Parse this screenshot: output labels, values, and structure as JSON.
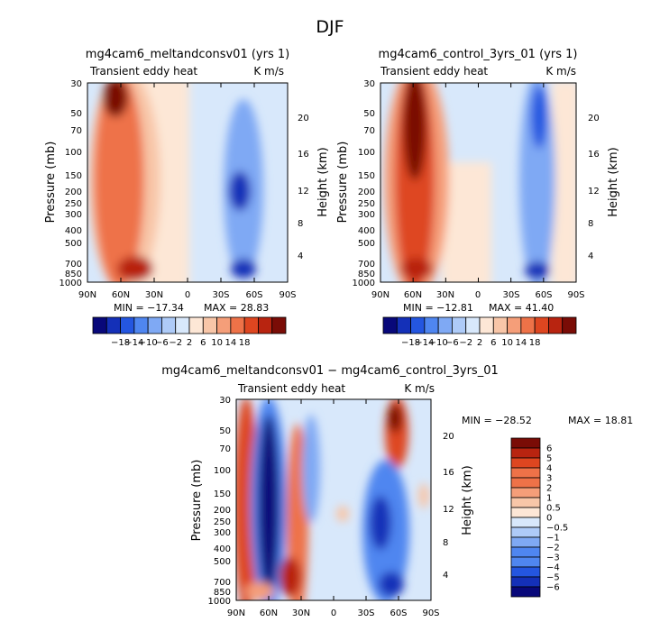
{
  "suptitle": "DJF",
  "chart_data": [
    {
      "type": "heatmap",
      "title": "mg4cam6_meltandconsv01 (yrs 1)",
      "subtitle_left": "Transient eddy heat",
      "subtitle_right": "K m/s",
      "ylabel": "Pressure (mb)",
      "ylabel_right": "Height (km)",
      "x_ticks": [
        "90N",
        "60N",
        "30N",
        "0",
        "30S",
        "60S",
        "90S"
      ],
      "y_ticks": [
        "30",
        "50",
        "70",
        "100",
        "150",
        "200",
        "250",
        "300",
        "400",
        "500",
        "700",
        "850",
        "1000"
      ],
      "right_ticks": [
        "20",
        "16",
        "12",
        "8",
        "4"
      ],
      "min_text": "MIN = −17.34",
      "max_text": "MAX =  28.83",
      "min_value": -17.34,
      "max_value": 28.83,
      "colorbar_labels": [
        "−18",
        "−14",
        "−10",
        "−6",
        "−2",
        "2",
        "6",
        "10",
        "14",
        "18"
      ],
      "colorbar_range": [
        -20,
        20
      ]
    },
    {
      "type": "heatmap",
      "title": "mg4cam6_control_3yrs_01 (yrs 1)",
      "subtitle_left": "Transient eddy heat",
      "subtitle_right": "K m/s",
      "ylabel": "Pressure (mb)",
      "ylabel_right": "Height (km)",
      "x_ticks": [
        "90N",
        "60N",
        "30N",
        "0",
        "30S",
        "60S",
        "90S"
      ],
      "y_ticks": [
        "30",
        "50",
        "70",
        "100",
        "150",
        "200",
        "250",
        "300",
        "400",
        "500",
        "700",
        "850",
        "1000"
      ],
      "right_ticks": [
        "20",
        "16",
        "12",
        "8",
        "4"
      ],
      "min_text": "MIN = −12.81",
      "max_text": "MAX =  41.40",
      "min_value": -12.81,
      "max_value": 41.4,
      "colorbar_labels": [
        "−18",
        "−14",
        "−10",
        "−6",
        "−2",
        "2",
        "6",
        "10",
        "14",
        "18"
      ],
      "colorbar_range": [
        -20,
        20
      ]
    },
    {
      "type": "heatmap",
      "title": "mg4cam6_meltandconsv01 − mg4cam6_control_3yrs_01",
      "subtitle_left": "Transient eddy heat",
      "subtitle_right": "K m/s",
      "ylabel": "Pressure (mb)",
      "ylabel_right": "Height (km)",
      "x_ticks": [
        "90N",
        "60N",
        "30N",
        "0",
        "30S",
        "60S",
        "90S"
      ],
      "y_ticks": [
        "30",
        "50",
        "70",
        "100",
        "150",
        "200",
        "250",
        "300",
        "400",
        "500",
        "700",
        "850",
        "1000"
      ],
      "right_ticks": [
        "20",
        "16",
        "12",
        "8",
        "4"
      ],
      "min_text": "MIN = −28.52",
      "max_text": "MAX =  18.81",
      "min_value": -28.52,
      "max_value": 18.81,
      "colorbar_labels": [
        "6",
        "5",
        "4",
        "3",
        "2",
        "1",
        "0.5",
        "0",
        "−0.5",
        "−1",
        "−2",
        "−3",
        "−4",
        "−5",
        "−6"
      ],
      "colorbar_range": [
        -6,
        6
      ]
    }
  ],
  "colors": {
    "diverging": [
      "#08087a",
      "#1430b8",
      "#2456e0",
      "#4f86f0",
      "#7fa9f4",
      "#aecbf8",
      "#d8e8fb",
      "#fde7d6",
      "#f8c6a8",
      "#f59e79",
      "#ee7248",
      "#de4620",
      "#b82410",
      "#7a0c06"
    ]
  }
}
